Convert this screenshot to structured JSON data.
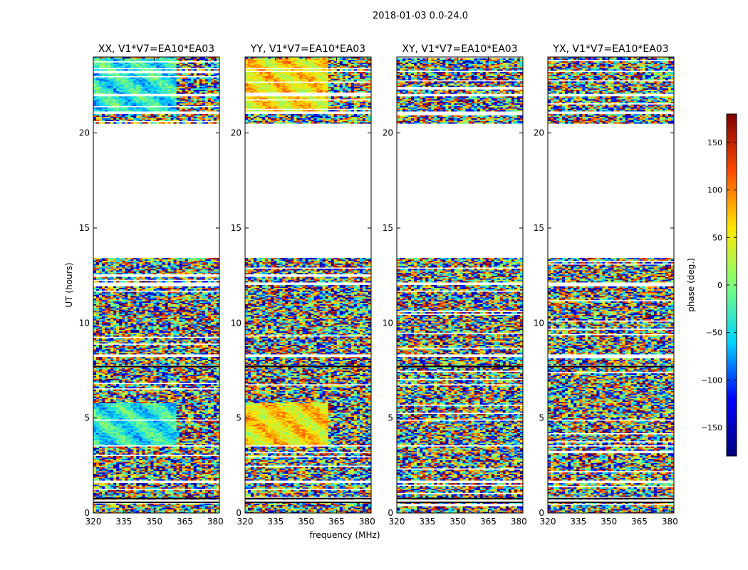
{
  "figure": {
    "suptitle": "2018-01-03 0.0-24.0",
    "shared_xlabel": "frequency (MHz)",
    "shared_ylabel": "UT (hours)"
  },
  "colorbar": {
    "label": "phase (deg.)",
    "vmin": -180,
    "vmax": 180,
    "ticks": [
      -150,
      -100,
      -50,
      0,
      50,
      100,
      150
    ],
    "tick_labels": [
      "−150",
      "−100",
      "−50",
      "0",
      "50",
      "100",
      "150"
    ],
    "colormap": "jet",
    "colormap_stops": [
      "#00007f",
      "#0000ff",
      "#00d4ff",
      "#7dff7a",
      "#ffe600",
      "#ff4a00",
      "#7f0000"
    ]
  },
  "chart_data": {
    "type": "heatmap",
    "title": "2018-01-03 0.0-24.0",
    "xlabel": "frequency (MHz)",
    "ylabel": "UT (hours)",
    "xlim": [
      320,
      382
    ],
    "ylim": [
      0,
      24
    ],
    "x_ticks": [
      320,
      335,
      350,
      365,
      380
    ],
    "y_ticks": [
      0,
      5,
      10,
      15,
      20
    ],
    "value_label": "phase (deg.)",
    "value_range": [
      -180,
      180
    ],
    "panels": [
      {
        "title": "XX, V1*V7=EA10*EA03",
        "base_phase": -40
      },
      {
        "title": "YY, V1*V7=EA10*EA03",
        "base_phase": 60
      },
      {
        "title": "XY, V1*V7=EA10*EA03",
        "base_phase": null
      },
      {
        "title": "YX, V1*V7=EA10*EA03",
        "base_phase": null
      }
    ],
    "data_time_ranges_hours": [
      [
        0.0,
        13.4
      ],
      [
        20.5,
        24.0
      ]
    ],
    "flagged_time_ranges_hours": [
      [
        13.4,
        20.5
      ],
      [
        21.0,
        21.15
      ],
      [
        21.95,
        22.05
      ],
      [
        23.2,
        23.3
      ],
      [
        12.0,
        12.15
      ],
      [
        8.2,
        8.35
      ],
      [
        3.5,
        3.6
      ],
      [
        1.55,
        1.7
      ],
      [
        0.55,
        0.7
      ]
    ]
  }
}
